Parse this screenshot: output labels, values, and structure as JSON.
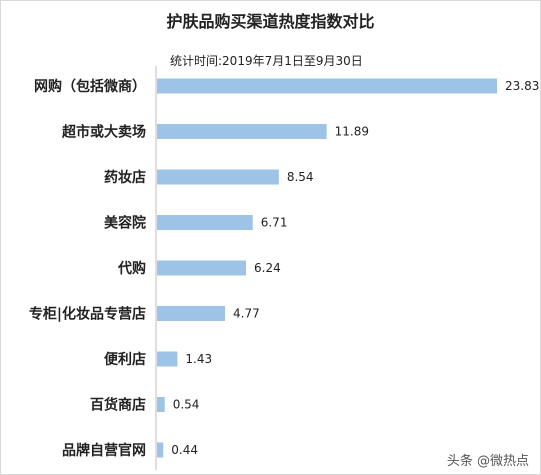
{
  "chart_data": {
    "type": "bar",
    "orientation": "horizontal",
    "title": "护肤品购买渠道热度指数对比",
    "subtitle": "统计时间:2019年7月1日至9月30日",
    "categories": [
      "网购（包括微商）",
      "超市或大卖场",
      "药妆店",
      "美容院",
      "代购",
      "专柜|化妆品专营店",
      "便利店",
      "百货商店",
      "品牌自营官网"
    ],
    "values": [
      23.83,
      11.89,
      8.54,
      6.71,
      6.24,
      4.77,
      1.43,
      0.54,
      0.44
    ],
    "value_labels": [
      "23.83",
      "11.89",
      "8.54",
      "6.71",
      "6.24",
      "4.77",
      "1.43",
      "0.54",
      "0.44"
    ],
    "xlim": [
      0,
      23.83
    ],
    "bar_color": "#9dc3e6",
    "grid": false,
    "legend": "none"
  },
  "watermark": "头条 @微热点"
}
